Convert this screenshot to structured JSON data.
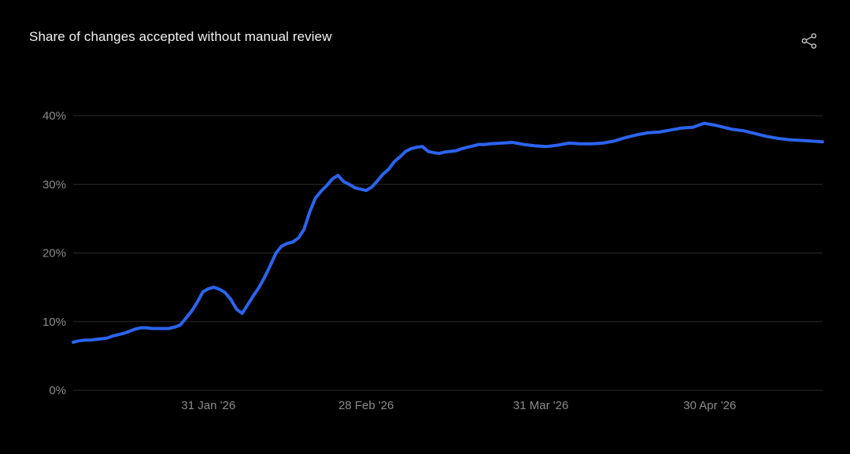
{
  "header": {
    "title": "Share of changes accepted without manual review",
    "share_icon": "share-icon"
  },
  "colors": {
    "background": "#000000",
    "line": "#2b64f0",
    "grid": "#2a2a2a",
    "tick_text": "#8a8a8a"
  },
  "chart_data": {
    "type": "line",
    "title": "Share of changes accepted without manual review",
    "xlabel": "",
    "ylabel": "",
    "ylim": [
      0,
      40
    ],
    "yticks": [
      0,
      10,
      20,
      30,
      40
    ],
    "ytick_labels": [
      "0%",
      "10%",
      "20%",
      "30%",
      "40%"
    ],
    "xlim": [
      "2026-01-07",
      "2026-05-20"
    ],
    "xticks": [
      "2026-01-31",
      "2026-02-28",
      "2026-03-31",
      "2026-04-30"
    ],
    "xtick_labels": [
      "31 Jan '26",
      "28 Feb '26",
      "31 Mar '26",
      "30 Apr '26"
    ],
    "grid": true,
    "legend": false,
    "series": [
      {
        "color": "#2b64f0",
        "x": [
          "2026-01-07",
          "2026-01-08",
          "2026-01-09",
          "2026-01-10",
          "2026-01-11",
          "2026-01-12",
          "2026-01-13",
          "2026-01-14",
          "2026-01-15",
          "2026-01-16",
          "2026-01-17",
          "2026-01-18",
          "2026-01-19",
          "2026-01-20",
          "2026-01-21",
          "2026-01-22",
          "2026-01-23",
          "2026-01-24",
          "2026-01-25",
          "2026-01-26",
          "2026-01-27",
          "2026-01-28",
          "2026-01-29",
          "2026-01-30",
          "2026-01-31",
          "2026-02-01",
          "2026-02-02",
          "2026-02-03",
          "2026-02-04",
          "2026-02-05",
          "2026-02-06",
          "2026-02-07",
          "2026-02-08",
          "2026-02-09",
          "2026-02-10",
          "2026-02-11",
          "2026-02-12",
          "2026-02-13",
          "2026-02-14",
          "2026-02-15",
          "2026-02-16",
          "2026-02-17",
          "2026-02-18",
          "2026-02-19",
          "2026-02-20",
          "2026-02-21",
          "2026-02-22",
          "2026-02-23",
          "2026-02-24",
          "2026-02-25",
          "2026-02-26",
          "2026-02-27",
          "2026-02-28",
          "2026-03-01",
          "2026-03-02",
          "2026-03-03",
          "2026-03-04",
          "2026-03-05",
          "2026-03-06",
          "2026-03-07",
          "2026-03-08",
          "2026-03-09",
          "2026-03-10",
          "2026-03-11",
          "2026-03-12",
          "2026-03-13",
          "2026-03-14",
          "2026-03-15",
          "2026-03-16",
          "2026-03-17",
          "2026-03-18",
          "2026-03-19",
          "2026-03-20",
          "2026-03-21",
          "2026-03-22",
          "2026-03-24",
          "2026-03-26",
          "2026-03-28",
          "2026-03-30",
          "2026-04-01",
          "2026-04-03",
          "2026-04-05",
          "2026-04-07",
          "2026-04-09",
          "2026-04-11",
          "2026-04-13",
          "2026-04-15",
          "2026-04-17",
          "2026-04-19",
          "2026-04-21",
          "2026-04-23",
          "2026-04-25",
          "2026-04-27",
          "2026-04-29",
          "2026-05-01",
          "2026-05-03",
          "2026-05-04",
          "2026-05-06",
          "2026-05-08",
          "2026-05-10",
          "2026-05-12",
          "2026-05-14",
          "2026-05-16",
          "2026-05-18",
          "2026-05-20"
        ],
        "y": [
          7.0,
          7.2,
          7.3,
          7.3,
          7.4,
          7.5,
          7.6,
          7.9,
          8.1,
          8.3,
          8.6,
          8.9,
          9.1,
          9.1,
          9.0,
          9.0,
          9.0,
          9.0,
          9.2,
          9.5,
          10.5,
          11.5,
          12.8,
          14.3,
          14.8,
          15.0,
          14.7,
          14.2,
          13.2,
          11.8,
          11.2,
          12.5,
          13.8,
          15.0,
          16.5,
          18.2,
          20.0,
          21.0,
          21.4,
          21.6,
          22.2,
          23.5,
          26.0,
          28.0,
          29.0,
          29.8,
          30.8,
          31.3,
          30.4,
          30.0,
          29.5,
          29.3,
          29.1,
          29.6,
          30.5,
          31.5,
          32.2,
          33.3,
          34.0,
          34.8,
          35.2,
          35.4,
          35.5,
          34.8,
          34.6,
          34.5,
          34.7,
          34.8,
          34.9,
          35.2,
          35.4,
          35.6,
          35.8,
          35.8,
          35.9,
          36.0,
          36.1,
          35.8,
          35.6,
          35.5,
          35.7,
          36.0,
          35.9,
          35.9,
          36.0,
          36.3,
          36.8,
          37.2,
          37.5,
          37.6,
          37.9,
          38.2,
          38.3,
          38.9,
          38.6,
          38.2,
          38.0,
          37.8,
          37.4,
          37.0,
          36.7,
          36.5,
          36.4,
          36.3,
          36.2
        ]
      }
    ]
  }
}
